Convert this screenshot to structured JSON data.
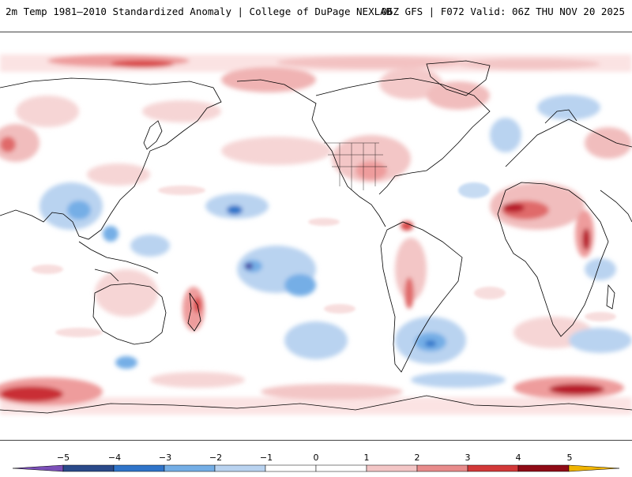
{
  "header": {
    "title_left": "2m Temp 1981–2010 Standardized Anomaly | College of DuPage NEXLAB",
    "title_right": "06Z GFS | F072 Valid: 06Z THU NOV 20 2025"
  },
  "map": {
    "projection": "equirectangular, Pacific-centered",
    "variable": "2m temperature standardized anomaly",
    "base_fill": "#ffffff",
    "coastline_color": "#000000"
  },
  "colorbar": {
    "ticks": [
      "−5",
      "−4",
      "−3",
      "−2",
      "−1",
      "0",
      "1",
      "2",
      "3",
      "4",
      "5"
    ],
    "colors": [
      "#7b4fb8",
      "#2a4a8a",
      "#2f74c9",
      "#74aee6",
      "#b9d3f0",
      "#ffffff",
      "#ffffff",
      "#f3c6c6",
      "#e88b8b",
      "#d23838",
      "#8f0b16",
      "#f0b400"
    ]
  }
}
